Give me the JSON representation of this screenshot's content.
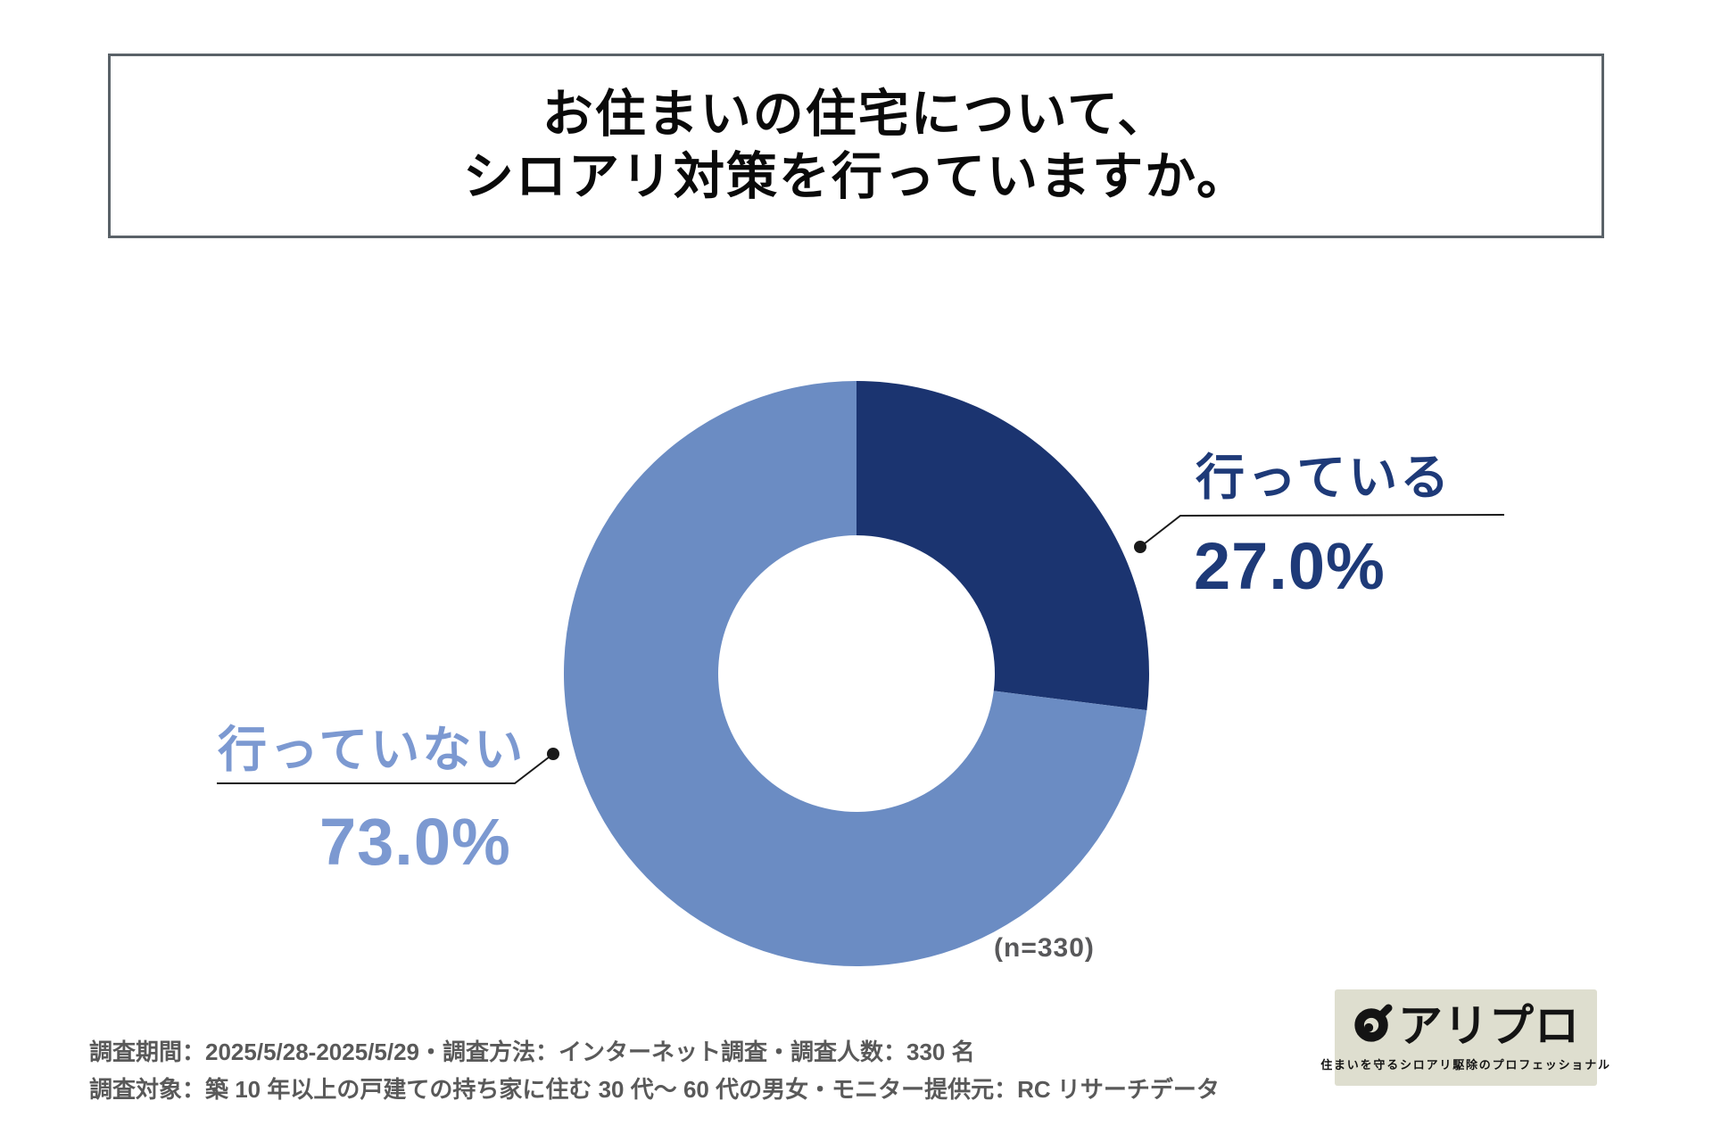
{
  "title": {
    "line1": "お住まいの住宅について、",
    "line2": "シロアリ対策を行っていますか。"
  },
  "chart_data": {
    "type": "pie",
    "subtype": "donut",
    "title": "お住まいの住宅について、シロアリ対策を行っていますか。",
    "categories": [
      "行っている",
      "行っていない"
    ],
    "values": [
      27.0,
      73.0
    ],
    "value_labels": [
      "27.0%",
      "73.0%"
    ],
    "colors": [
      "#1b3470",
      "#6b8cc3"
    ],
    "label_text_colors": [
      "#1e3a78",
      "#7c99d1"
    ],
    "sample_size": 330,
    "sample_size_label": "(n=330)",
    "start_angle_deg": 90,
    "direction": "clockwise",
    "legend_position": "callout-labels",
    "grid": false
  },
  "labels": {
    "yes": {
      "name": "行っている",
      "value": "27.0%"
    },
    "no": {
      "name": "行っていない",
      "value": "73.0%"
    }
  },
  "note": "(n=330)",
  "footer": {
    "line1": "調査期間：2025/5/28-2025/5/29・調査方法：インターネット調査・調査人数：330 名",
    "line2": "調査対象：築 10 年以上の戸建ての持ち家に住む 30 代〜 60 代の男女・モニター提供元：RC リサーチデータ"
  },
  "logo": {
    "text": "アリプロ",
    "tagline": "住まいを守るシロアリ駆除のプロフェッショナル"
  }
}
